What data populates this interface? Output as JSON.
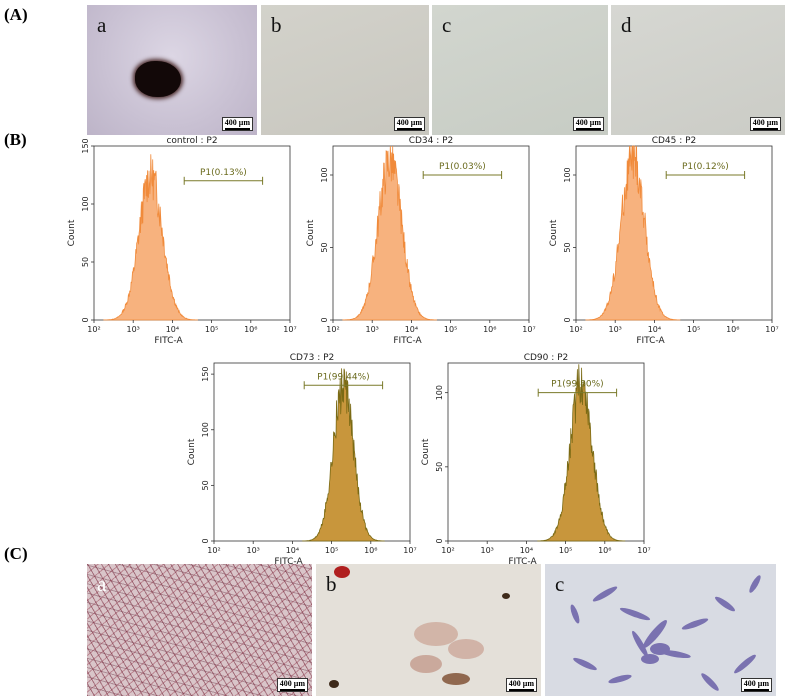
{
  "panel_labels": {
    "A": "(A)",
    "B": "(B)",
    "C": "(C)"
  },
  "panel_a": {
    "images": [
      {
        "letter": "a",
        "scale": "400 μm"
      },
      {
        "letter": "b",
        "scale": "400 μm"
      },
      {
        "letter": "c",
        "scale": "400 μm"
      },
      {
        "letter": "d",
        "scale": "400 μm"
      }
    ]
  },
  "panel_c": {
    "images": [
      {
        "letter": "a",
        "scale": "400 μm"
      },
      {
        "letter": "b",
        "scale": "400 μm"
      },
      {
        "letter": "c",
        "scale": "400 μm"
      }
    ]
  },
  "chart_data": [
    {
      "type": "area",
      "title": "control : P2",
      "xlabel": "FITC-A",
      "ylabel": "Count",
      "x_scale": "log",
      "xlim": [
        100,
        10000000
      ],
      "ylim": [
        0,
        150
      ],
      "yticks": [
        0,
        50,
        100,
        150
      ],
      "x_tick_labels": [
        "10²",
        "10³",
        "10⁴",
        "10⁵",
        "10⁶",
        "10⁷"
      ],
      "gate": {
        "label": "P1(0.13%)",
        "from": 20000,
        "to": 2000000,
        "level": 120
      },
      "histogram": {
        "center_log10": 3.45,
        "width": 0.3,
        "peak": 128
      },
      "fill": "#f7b27e",
      "stroke": "#f08a3a"
    },
    {
      "type": "area",
      "title": "CD34 : P2",
      "xlabel": "FITC-A",
      "ylabel": "Count",
      "x_scale": "log",
      "xlim": [
        100,
        10000000
      ],
      "ylim": [
        0,
        120
      ],
      "yticks": [
        0,
        50,
        100
      ],
      "x_tick_labels": [
        "10²",
        "10³",
        "10⁴",
        "10⁵",
        "10⁶",
        "10⁷"
      ],
      "gate": {
        "label": "P1(0.03%)",
        "from": 20000,
        "to": 2000000,
        "level": 100
      },
      "histogram": {
        "center_log10": 3.45,
        "width": 0.3,
        "peak": 113
      },
      "fill": "#f7b27e",
      "stroke": "#f08a3a"
    },
    {
      "type": "area",
      "title": "CD45 : P2",
      "xlabel": "FITC-A",
      "ylabel": "Count",
      "x_scale": "log",
      "xlim": [
        100,
        10000000
      ],
      "ylim": [
        0,
        120
      ],
      "yticks": [
        0,
        50,
        100
      ],
      "x_tick_labels": [
        "10²",
        "10³",
        "10⁴",
        "10⁵",
        "10⁶",
        "10⁷"
      ],
      "gate": {
        "label": "P1(0.12%)",
        "from": 20000,
        "to": 2000000,
        "level": 100
      },
      "histogram": {
        "center_log10": 3.45,
        "width": 0.3,
        "peak": 114
      },
      "fill": "#f7b27e",
      "stroke": "#f08a3a"
    },
    {
      "type": "area",
      "title": "CD73 : P2",
      "xlabel": "FITC-A",
      "ylabel": "Count",
      "x_scale": "log",
      "xlim": [
        100,
        10000000
      ],
      "ylim": [
        0,
        160
      ],
      "yticks": [
        0,
        50,
        100,
        150
      ],
      "x_tick_labels": [
        "10²",
        "10³",
        "10⁴",
        "10⁵",
        "10⁶",
        "10⁷"
      ],
      "gate": {
        "label": "P1(99.44%)",
        "from": 20000,
        "to": 2000000,
        "level": 140
      },
      "histogram": {
        "center_log10": 5.3,
        "width": 0.26,
        "peak": 142
      },
      "fill": "#c8963c",
      "stroke": "#7a6a14"
    },
    {
      "type": "area",
      "title": "CD90 : P2",
      "xlabel": "FITC-A",
      "ylabel": "Count",
      "x_scale": "log",
      "xlim": [
        100,
        10000000
      ],
      "ylim": [
        0,
        120
      ],
      "yticks": [
        0,
        50,
        100
      ],
      "x_tick_labels": [
        "10²",
        "10³",
        "10⁴",
        "10⁵",
        "10⁶",
        "10⁷"
      ],
      "gate": {
        "label": "P1(99.80%)",
        "from": 20000,
        "to": 2000000,
        "level": 100
      },
      "histogram": {
        "center_log10": 5.4,
        "width": 0.28,
        "peak": 111
      },
      "fill": "#c8963c",
      "stroke": "#7a6a14"
    }
  ]
}
